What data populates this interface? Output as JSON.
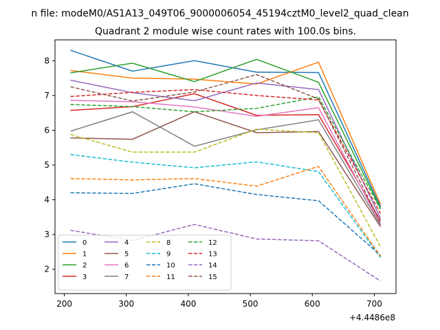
{
  "chart_data": {
    "type": "line",
    "suptitle": "n file: modeM0/AS1A13_049T06_9000006054_45194cztM0_level2_quad_clean",
    "title": "Quadrant 2 module wise count rates with 100.0s bins.",
    "xlabel": "",
    "ylabel": "",
    "x_offset_label": "+4.4486e8",
    "x": [
      210,
      310,
      410,
      510,
      610,
      710
    ],
    "xlim": [
      185,
      735
    ],
    "ylim": [
      1.3,
      8.6
    ],
    "xticks": [
      200,
      300,
      400,
      500,
      600,
      700
    ],
    "yticks": [
      2,
      3,
      4,
      5,
      6,
      7,
      8
    ],
    "grid": false,
    "legend": {
      "placement": "lower-left",
      "columns": 4
    },
    "series": [
      {
        "name": "0",
        "color": "#1f77b4",
        "dash": "solid",
        "values": [
          8.3,
          7.7,
          8.0,
          7.67,
          7.66,
          3.8
        ]
      },
      {
        "name": "1",
        "color": "#ff7f0e",
        "dash": "solid",
        "values": [
          7.72,
          7.5,
          7.47,
          7.33,
          7.96,
          3.87
        ]
      },
      {
        "name": "2",
        "color": "#2ca02c",
        "dash": "solid",
        "values": [
          7.65,
          7.93,
          7.4,
          8.04,
          7.38,
          3.75
        ]
      },
      {
        "name": "3",
        "color": "#d62728",
        "dash": "solid",
        "values": [
          6.57,
          6.68,
          7.05,
          6.43,
          6.45,
          3.4
        ]
      },
      {
        "name": "4",
        "color": "#9467bd",
        "dash": "solid",
        "values": [
          7.44,
          7.08,
          6.85,
          7.36,
          7.17,
          3.47
        ]
      },
      {
        "name": "5",
        "color": "#8c564b",
        "dash": "solid",
        "values": [
          5.78,
          5.74,
          6.53,
          5.93,
          5.96,
          3.22
        ]
      },
      {
        "name": "6",
        "color": "#e377c2",
        "dash": "solid",
        "values": [
          6.86,
          6.82,
          6.67,
          6.4,
          6.65,
          3.3
        ]
      },
      {
        "name": "7",
        "color": "#7f7f7f",
        "dash": "solid",
        "values": [
          5.97,
          6.53,
          5.54,
          6.01,
          6.3,
          3.27
        ]
      },
      {
        "name": "8",
        "color": "#bcbd22",
        "dash": "dashed",
        "values": [
          5.88,
          5.37,
          5.37,
          6.03,
          5.93,
          2.65
        ]
      },
      {
        "name": "9",
        "color": "#17becf",
        "dash": "dashed",
        "values": [
          5.3,
          5.08,
          4.92,
          5.09,
          4.81,
          2.33
        ]
      },
      {
        "name": "10",
        "color": "#1f77b4",
        "dash": "dashed",
        "values": [
          4.2,
          4.18,
          4.46,
          4.15,
          3.97,
          2.4
        ]
      },
      {
        "name": "11",
        "color": "#ff7f0e",
        "dash": "dashed",
        "values": [
          4.61,
          4.57,
          4.61,
          4.39,
          4.96,
          2.37
        ]
      },
      {
        "name": "12",
        "color": "#2ca02c",
        "dash": "dashed",
        "values": [
          6.74,
          6.68,
          6.53,
          6.63,
          6.96,
          3.73
        ]
      },
      {
        "name": "13",
        "color": "#d62728",
        "dash": "dashed",
        "values": [
          6.97,
          7.09,
          7.17,
          7.0,
          6.87,
          3.6
        ]
      },
      {
        "name": "14",
        "color": "#9467bd",
        "dash": "dashed",
        "values": [
          3.12,
          2.83,
          3.29,
          2.87,
          2.82,
          1.66
        ]
      },
      {
        "name": "15",
        "color": "#8c564b",
        "dash": "dashed",
        "values": [
          7.25,
          6.84,
          7.1,
          7.6,
          6.9,
          3.35
        ]
      }
    ]
  }
}
